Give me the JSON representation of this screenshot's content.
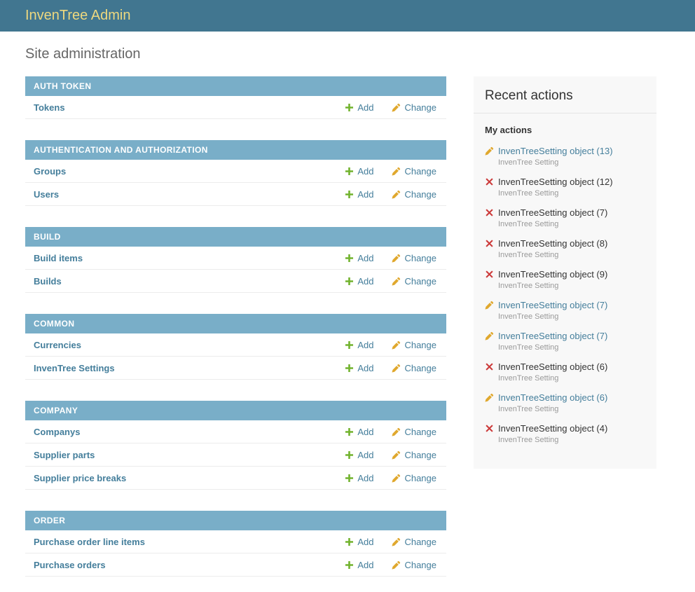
{
  "header": {
    "title": "InvenTree Admin"
  },
  "page_title": "Site administration",
  "actions": {
    "add_label": "Add",
    "change_label": "Change"
  },
  "sections": [
    {
      "title": "AUTH TOKEN",
      "models": [
        {
          "name": "Tokens"
        }
      ]
    },
    {
      "title": "AUTHENTICATION AND AUTHORIZATION",
      "models": [
        {
          "name": "Groups"
        },
        {
          "name": "Users"
        }
      ]
    },
    {
      "title": "BUILD",
      "models": [
        {
          "name": "Build items"
        },
        {
          "name": "Builds"
        }
      ]
    },
    {
      "title": "COMMON",
      "models": [
        {
          "name": "Currencies"
        },
        {
          "name": "InvenTree Settings"
        }
      ]
    },
    {
      "title": "COMPANY",
      "models": [
        {
          "name": "Companys"
        },
        {
          "name": "Supplier parts"
        },
        {
          "name": "Supplier price breaks"
        }
      ]
    },
    {
      "title": "ORDER",
      "models": [
        {
          "name": "Purchase order line items"
        },
        {
          "name": "Purchase orders"
        }
      ]
    }
  ],
  "recent_actions": {
    "title": "Recent actions",
    "subtitle": "My actions",
    "items": [
      {
        "action": "change",
        "label": "InvenTreeSetting object (13)",
        "type": "InvenTree Setting"
      },
      {
        "action": "delete",
        "label": "InvenTreeSetting object (12)",
        "type": "InvenTree Setting"
      },
      {
        "action": "delete",
        "label": "InvenTreeSetting object (7)",
        "type": "InvenTree Setting"
      },
      {
        "action": "delete",
        "label": "InvenTreeSetting object (8)",
        "type": "InvenTree Setting"
      },
      {
        "action": "delete",
        "label": "InvenTreeSetting object (9)",
        "type": "InvenTree Setting"
      },
      {
        "action": "change",
        "label": "InvenTreeSetting object (7)",
        "type": "InvenTree Setting"
      },
      {
        "action": "change",
        "label": "InvenTreeSetting object (7)",
        "type": "InvenTree Setting"
      },
      {
        "action": "delete",
        "label": "InvenTreeSetting object (6)",
        "type": "InvenTree Setting"
      },
      {
        "action": "change",
        "label": "InvenTreeSetting object (6)",
        "type": "InvenTree Setting"
      },
      {
        "action": "delete",
        "label": "InvenTreeSetting object (4)",
        "type": "InvenTree Setting"
      }
    ]
  },
  "colors": {
    "header_bg": "#417690",
    "header_title": "#EDD87F",
    "section_header_bg": "#79AEC8",
    "section_header_text": "#FFFFFF",
    "link": "#447E9B",
    "add_icon_green": "#72B32E",
    "change_icon_gold": "#E0A82E",
    "delete_icon_red": "#CC3B3B",
    "muted_text": "#999999",
    "panel_bg": "#F8F8F8"
  }
}
